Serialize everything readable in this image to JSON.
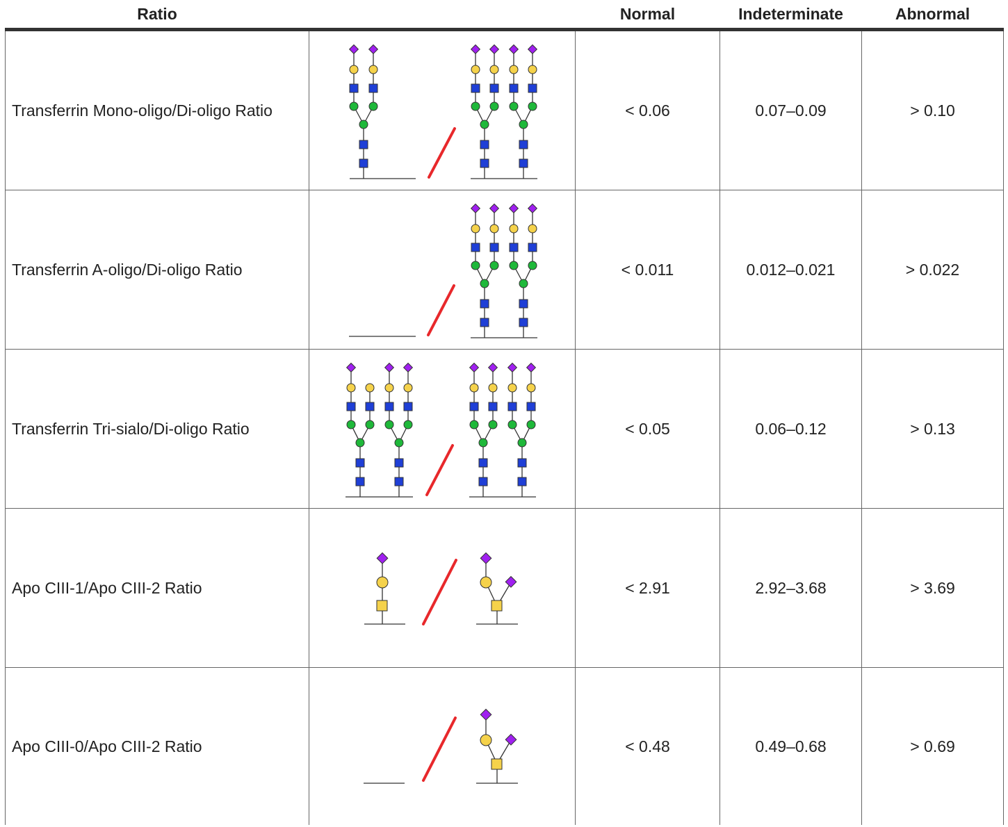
{
  "header": {
    "ratio": "Ratio",
    "image": "",
    "normal": "Normal",
    "indeterminate": "Indeterminate",
    "abnormal": "Abnormal"
  },
  "rows": [
    {
      "label": "Transferrin Mono-oligo/Di-oligo Ratio",
      "numerator": "mono-oligo glycan",
      "denominator": "di-oligo glycan",
      "normal": "< 0.06",
      "indeterminate": "0.07–0.09",
      "abnormal": "> 0.10"
    },
    {
      "label": "Transferrin A-oligo/Di-oligo Ratio",
      "numerator": "a-oligo (no glycan)",
      "denominator": "di-oligo glycan",
      "normal": "< 0.011",
      "indeterminate": "0.012–0.021",
      "abnormal": "> 0.022"
    },
    {
      "label": "Transferrin Tri-sialo/Di-oligo Ratio",
      "numerator": "tri-sialo glycan",
      "denominator": "di-oligo glycan",
      "normal": "< 0.05",
      "indeterminate": "0.06–0.12",
      "abnormal": "> 0.13"
    },
    {
      "label": "Apo CIII-1/Apo CIII-2 Ratio",
      "numerator": "apo CIII-1 glycan",
      "denominator": "apo CIII-2 glycan",
      "normal": "< 2.91",
      "indeterminate": "2.92–3.68",
      "abnormal": "> 3.69"
    },
    {
      "label": "Apo CIII-0/Apo CIII-2 Ratio",
      "numerator": "apo CIII-0 (no glycan)",
      "denominator": "apo CIII-2 glycan",
      "normal": "< 0.48",
      "indeterminate": "0.49–0.68",
      "abnormal": "> 0.69"
    }
  ],
  "colors": {
    "sialic_acid": "#a020f0",
    "galactose": "#f5d24b",
    "glcnac": "#1f3fd6",
    "mannose": "#1fb83a",
    "slash": "#e8282b"
  }
}
